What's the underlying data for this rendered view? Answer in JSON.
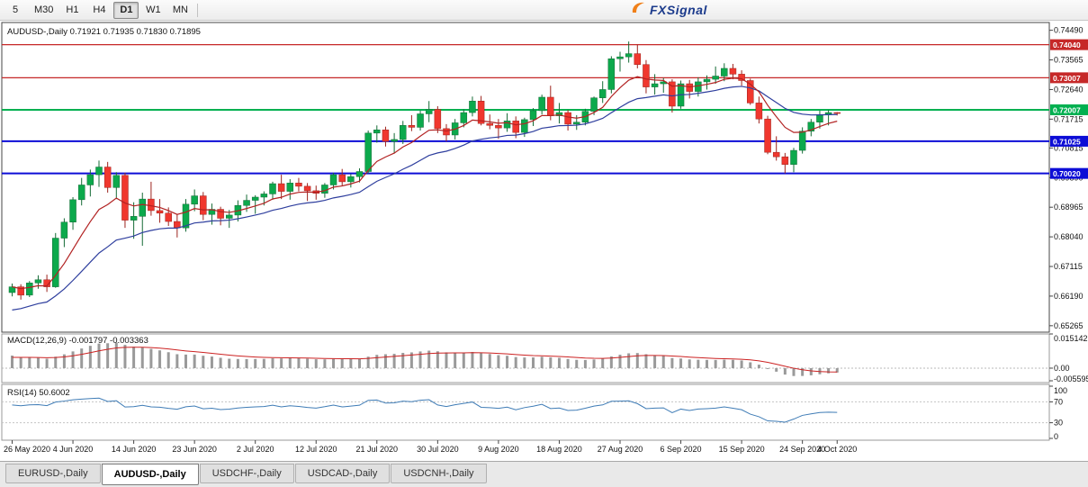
{
  "toolbar": {
    "timeframes": [
      {
        "label": "5",
        "active": false,
        "sep_after": false
      },
      {
        "label": "M30",
        "active": false,
        "sep_after": false
      },
      {
        "label": "H1",
        "active": false,
        "sep_after": false
      },
      {
        "label": "H4",
        "active": false,
        "sep_after": false
      },
      {
        "label": "D1",
        "active": true,
        "sep_after": false
      },
      {
        "label": "W1",
        "active": false,
        "sep_after": false
      },
      {
        "label": "MN",
        "active": false,
        "sep_after": true
      }
    ]
  },
  "brand": {
    "text": "FXSignal",
    "accent": "#f08019",
    "color": "#1c3b8c"
  },
  "chart": {
    "title": "AUDUSD-,Daily",
    "open": "0.71921",
    "high": "0.71935",
    "low": "0.71830",
    "close": "0.71895",
    "up_color": "#0ca94c",
    "down_color": "#f0372e",
    "wick_up": "#156b36",
    "wick_down": "#9c231d",
    "ma_fast_color": "#b22222",
    "ma_slow_color": "#2f3f9e",
    "price_axis": [
      "0.74490",
      "0.73565",
      "0.72640",
      "0.71715",
      "0.70815",
      "0.69890",
      "0.68965",
      "0.68040",
      "0.67115",
      "0.66190",
      "0.65265"
    ],
    "levels": [
      {
        "label": "0.74040",
        "value": 0.7404,
        "color": "#c62828",
        "width": 1.2
      },
      {
        "label": "0.73007",
        "value": 0.73007,
        "color": "#c62828",
        "width": 1.2
      },
      {
        "label": "0.72007",
        "value": 0.72007,
        "color": "#00b050",
        "width": 2
      },
      {
        "label": "0.71025",
        "value": 0.71025,
        "color": "#0d0dd6",
        "width": 2
      },
      {
        "label": "0.70020",
        "value": 0.7002,
        "color": "#0d0dd6",
        "width": 2
      }
    ],
    "candles": [
      [
        0.663,
        0.6658,
        0.6618,
        0.6648
      ],
      [
        0.6648,
        0.6656,
        0.6608,
        0.6622
      ],
      [
        0.6622,
        0.6666,
        0.6616,
        0.666
      ],
      [
        0.666,
        0.6684,
        0.6642,
        0.667
      ],
      [
        0.667,
        0.6686,
        0.6632,
        0.6648
      ],
      [
        0.6648,
        0.6816,
        0.6645,
        0.68
      ],
      [
        0.68,
        0.6862,
        0.6772,
        0.685
      ],
      [
        0.685,
        0.6928,
        0.6826,
        0.692
      ],
      [
        0.692,
        0.6988,
        0.6902,
        0.6966
      ],
      [
        0.6966,
        0.7014,
        0.693,
        0.6998
      ],
      [
        0.6998,
        0.7042,
        0.696,
        0.7022
      ],
      [
        0.7022,
        0.7038,
        0.6942,
        0.6958
      ],
      [
        0.6958,
        0.7006,
        0.6922,
        0.6996
      ],
      [
        0.6996,
        0.7004,
        0.6832,
        0.6856
      ],
      [
        0.6856,
        0.6912,
        0.6798,
        0.6868
      ],
      [
        0.6868,
        0.6942,
        0.6776,
        0.6922
      ],
      [
        0.6922,
        0.6976,
        0.687,
        0.6886
      ],
      [
        0.6886,
        0.6922,
        0.6848,
        0.6878
      ],
      [
        0.6878,
        0.6896,
        0.6838,
        0.6852
      ],
      [
        0.6852,
        0.6876,
        0.6802,
        0.6832
      ],
      [
        0.6832,
        0.6922,
        0.682,
        0.6906
      ],
      [
        0.6906,
        0.6952,
        0.6884,
        0.6932
      ],
      [
        0.6932,
        0.6944,
        0.6856,
        0.6874
      ],
      [
        0.6874,
        0.6908,
        0.6842,
        0.689
      ],
      [
        0.689,
        0.6898,
        0.684,
        0.6862
      ],
      [
        0.6862,
        0.6888,
        0.6832,
        0.6872
      ],
      [
        0.6872,
        0.6918,
        0.6852,
        0.6902
      ],
      [
        0.6902,
        0.6936,
        0.6882,
        0.6918
      ],
      [
        0.6918,
        0.6934,
        0.6876,
        0.6928
      ],
      [
        0.6928,
        0.6946,
        0.6902,
        0.6938
      ],
      [
        0.6938,
        0.6976,
        0.692,
        0.697
      ],
      [
        0.697,
        0.6998,
        0.6922,
        0.6946
      ],
      [
        0.6946,
        0.6984,
        0.692,
        0.6972
      ],
      [
        0.6972,
        0.6988,
        0.6946,
        0.6962
      ],
      [
        0.6962,
        0.6972,
        0.6916,
        0.6948
      ],
      [
        0.6948,
        0.6964,
        0.692,
        0.694
      ],
      [
        0.694,
        0.6972,
        0.6926,
        0.6966
      ],
      [
        0.6966,
        0.7004,
        0.6952,
        0.6998
      ],
      [
        0.6998,
        0.7016,
        0.6962,
        0.6976
      ],
      [
        0.6976,
        0.7,
        0.6958,
        0.6992
      ],
      [
        0.6992,
        0.7018,
        0.6974,
        0.7008
      ],
      [
        0.7008,
        0.7136,
        0.7002,
        0.7128
      ],
      [
        0.7128,
        0.7152,
        0.7098,
        0.7138
      ],
      [
        0.7138,
        0.7148,
        0.7086,
        0.7102
      ],
      [
        0.7102,
        0.7128,
        0.7064,
        0.7108
      ],
      [
        0.7108,
        0.7166,
        0.7094,
        0.7152
      ],
      [
        0.7152,
        0.7184,
        0.7134,
        0.7146
      ],
      [
        0.7146,
        0.7198,
        0.7136,
        0.7188
      ],
      [
        0.7188,
        0.7228,
        0.7162,
        0.7202
      ],
      [
        0.7202,
        0.7212,
        0.7128,
        0.7142
      ],
      [
        0.7142,
        0.7156,
        0.7102,
        0.7122
      ],
      [
        0.7122,
        0.7172,
        0.7108,
        0.716
      ],
      [
        0.716,
        0.7202,
        0.7146,
        0.7192
      ],
      [
        0.7192,
        0.7242,
        0.718,
        0.7228
      ],
      [
        0.7228,
        0.7244,
        0.7152,
        0.7158
      ],
      [
        0.7158,
        0.7186,
        0.714,
        0.7152
      ],
      [
        0.7152,
        0.7172,
        0.711,
        0.7144
      ],
      [
        0.7144,
        0.719,
        0.7132,
        0.7166
      ],
      [
        0.7166,
        0.718,
        0.7112,
        0.713
      ],
      [
        0.713,
        0.7176,
        0.7116,
        0.717
      ],
      [
        0.717,
        0.7206,
        0.715,
        0.7198
      ],
      [
        0.7198,
        0.7248,
        0.7186,
        0.724
      ],
      [
        0.724,
        0.7276,
        0.7168,
        0.7182
      ],
      [
        0.7182,
        0.7222,
        0.7158,
        0.7192
      ],
      [
        0.7192,
        0.72,
        0.7136,
        0.7156
      ],
      [
        0.7156,
        0.7184,
        0.7138,
        0.7162
      ],
      [
        0.7162,
        0.7204,
        0.7152,
        0.7196
      ],
      [
        0.7196,
        0.7242,
        0.7184,
        0.7238
      ],
      [
        0.7238,
        0.729,
        0.7222,
        0.7264
      ],
      [
        0.7264,
        0.7368,
        0.7252,
        0.736
      ],
      [
        0.736,
        0.7382,
        0.732,
        0.7366
      ],
      [
        0.7366,
        0.7414,
        0.7348,
        0.7376
      ],
      [
        0.7376,
        0.7404,
        0.733,
        0.7342
      ],
      [
        0.7342,
        0.7356,
        0.7252,
        0.7272
      ],
      [
        0.7272,
        0.7312,
        0.7248,
        0.7282
      ],
      [
        0.7282,
        0.73,
        0.7254,
        0.7288
      ],
      [
        0.7288,
        0.7296,
        0.7192,
        0.7212
      ],
      [
        0.7212,
        0.7292,
        0.7204,
        0.7282
      ],
      [
        0.7282,
        0.7294,
        0.7236,
        0.7258
      ],
      [
        0.7258,
        0.7302,
        0.7242,
        0.7288
      ],
      [
        0.7288,
        0.7308,
        0.7264,
        0.7296
      ],
      [
        0.7296,
        0.7336,
        0.7282,
        0.7306
      ],
      [
        0.7306,
        0.7346,
        0.729,
        0.733
      ],
      [
        0.733,
        0.7344,
        0.7296,
        0.7312
      ],
      [
        0.7312,
        0.7324,
        0.7276,
        0.7292
      ],
      [
        0.7292,
        0.7298,
        0.7216,
        0.7222
      ],
      [
        0.7222,
        0.7242,
        0.7158,
        0.7172
      ],
      [
        0.7172,
        0.7182,
        0.7062,
        0.7068
      ],
      [
        0.7068,
        0.7118,
        0.7042,
        0.7054
      ],
      [
        0.7054,
        0.7066,
        0.7002,
        0.703
      ],
      [
        0.703,
        0.7082,
        0.7006,
        0.7074
      ],
      [
        0.7074,
        0.7146,
        0.7064,
        0.7134
      ],
      [
        0.7134,
        0.7172,
        0.7118,
        0.7162
      ],
      [
        0.7162,
        0.7198,
        0.7142,
        0.7186
      ],
      [
        0.7186,
        0.72,
        0.7152,
        0.7192
      ],
      [
        0.71921,
        0.71935,
        0.7183,
        0.71895
      ]
    ],
    "date_axis": [
      {
        "label": "26 May 2020",
        "index": 0
      },
      {
        "label": "4 Jun 2020",
        "index": 7
      },
      {
        "label": "14 Jun 2020",
        "index": 14
      },
      {
        "label": "23 Jun 2020",
        "index": 21
      },
      {
        "label": "2 Jul 2020",
        "index": 28
      },
      {
        "label": "12 Jul 2020",
        "index": 35
      },
      {
        "label": "21 Jul 2020",
        "index": 42
      },
      {
        "label": "30 Jul 2020",
        "index": 49
      },
      {
        "label": "9 Aug 2020",
        "index": 56
      },
      {
        "label": "18 Aug 2020",
        "index": 63
      },
      {
        "label": "27 Aug 2020",
        "index": 70
      },
      {
        "label": "6 Sep 2020",
        "index": 77
      },
      {
        "label": "15 Sep 2020",
        "index": 84
      },
      {
        "label": "24 Sep 2020",
        "index": 91
      },
      {
        "label": "4 Oct 2020",
        "index": 95
      }
    ],
    "macd": {
      "label": "MACD(12,26,9)",
      "value": "-0.001797",
      "signal": "-0.003363",
      "scale_max": 0.015142,
      "scale_min": -0.005595,
      "axis": [
        {
          "v": 0.015142,
          "label": "0.015142"
        },
        {
          "v": 0,
          "label": "0.00"
        },
        {
          "v": -0.005595,
          "label": "-0.005595"
        }
      ],
      "bar_color": "#9a9a9a",
      "signal_color": "#cc2222"
    },
    "rsi": {
      "label": "RSI(14)",
      "value": "50.6002",
      "axis": [
        {
          "v": 100,
          "label": "100"
        },
        {
          "v": 70,
          "label": "70"
        },
        {
          "v": 30,
          "label": "30"
        },
        {
          "v": 0,
          "label": "0"
        }
      ],
      "line_color": "#3f7cb6",
      "levels": [
        70,
        30
      ]
    }
  },
  "tabs": [
    {
      "label": "EURUSD-,Daily",
      "active": false
    },
    {
      "label": "AUDUSD-,Daily",
      "active": true
    },
    {
      "label": "USDCHF-,Daily",
      "active": false
    },
    {
      "label": "USDCAD-,Daily",
      "active": false
    },
    {
      "label": "USDCNH-,Daily",
      "active": false
    }
  ]
}
